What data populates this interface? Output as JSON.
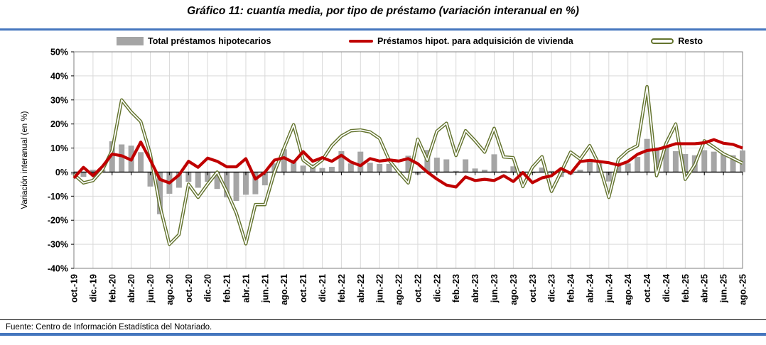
{
  "title": "Gráfico 11: cuantía media, por tipo de préstamo (variación interanual en %)",
  "footer": "Fuente: Centro de Información Estadística del Notariado.",
  "colors": {
    "accent_rule": "#4576BE",
    "bars": "#A5A5A5",
    "line_vivienda": "#C00000",
    "line_resto": "#64742F",
    "grid": "#D9D9D9",
    "axis": "#000000"
  },
  "legend": {
    "total_label": "Total préstamos hipotecarios",
    "vivienda_label": "Préstamos hipot. para adquisición de vivienda",
    "resto_label": "Resto"
  },
  "chart_data": {
    "type": "bar+line combo",
    "title": "Gráfico 11: cuantía media, por tipo de préstamo (variación interanual en %)",
    "ylabel": "Variación interanual (en %)",
    "ylim": [
      -40,
      50
    ],
    "grid": true,
    "legend_position": "top",
    "y_ticks": [
      50,
      40,
      30,
      20,
      10,
      0,
      -10,
      -20,
      -30,
      -40
    ],
    "y_tick_labels": [
      "50%",
      "40%",
      "30%",
      "20%",
      "10%",
      "0%",
      "-10%",
      "-20%",
      "-30%",
      "-40%"
    ],
    "x_tick_labels": [
      "oct.-19",
      "dic.-19",
      "feb.-20",
      "abr.-20",
      "jun.-20",
      "ago.-20",
      "oct.-20",
      "dic.-20",
      "feb.-21",
      "abr.-21",
      "jun.-21",
      "ago.-21",
      "oct.-21",
      "dic.-21",
      "feb.-22",
      "abr.-22",
      "jun.-22",
      "ago.-22",
      "oct.-22",
      "dic.-22",
      "feb.-23",
      "abr.-23",
      "jun.-23",
      "ago.-23",
      "oct.-23",
      "dic.-23",
      "feb.-24",
      "abr.-24",
      "jun.-24",
      "ago.-24",
      "oct.-24",
      "dic.-24",
      "feb.-25",
      "abr.-25",
      "jun.-25",
      "ago.-25"
    ],
    "categories": [
      "oct-19",
      "nov-19",
      "dic-19",
      "ene-20",
      "feb-20",
      "mar-20",
      "abr-20",
      "may-20",
      "jun-20",
      "jul-20",
      "ago-20",
      "sep-20",
      "oct-20",
      "nov-20",
      "dic-20",
      "ene-21",
      "feb-21",
      "mar-21",
      "abr-21",
      "may-21",
      "jun-21",
      "jul-21",
      "ago-21",
      "sep-21",
      "oct-21",
      "nov-21",
      "dic-21",
      "ene-22",
      "feb-22",
      "mar-22",
      "abr-22",
      "may-22",
      "jun-22",
      "jul-22",
      "ago-22",
      "sep-22",
      "oct-22",
      "nov-22",
      "dic-22",
      "ene-23",
      "feb-23",
      "mar-23",
      "abr-23",
      "may-23",
      "jun-23",
      "jul-23",
      "ago-23",
      "sep-23",
      "oct-23",
      "nov-23",
      "dic-23",
      "ene-24",
      "feb-24",
      "mar-24",
      "abr-24",
      "may-24",
      "jun-24",
      "jul-24",
      "ago-24",
      "sep-24",
      "oct-24",
      "nov-24",
      "dic-24",
      "ene-25",
      "feb-25",
      "mar-25",
      "abr-25",
      "may-25",
      "jun-25",
      "jul-25",
      "ago-25"
    ],
    "series": [
      {
        "name": "Total préstamos hipotecarios",
        "type": "bar",
        "values": [
          -1,
          -2,
          1,
          1,
          12.8,
          11.5,
          11,
          8.3,
          -6,
          -17.5,
          -9,
          -6.5,
          -4,
          -6.5,
          -4,
          -7,
          -10.5,
          -12,
          -9.4,
          -9.2,
          -5.5,
          3.6,
          9.5,
          5.1,
          2.7,
          3.2,
          1.7,
          2.2,
          8.7,
          3.6,
          8.5,
          3.9,
          3.4,
          3.4,
          0.5,
          6.8,
          -1,
          9.2,
          6,
          5.3,
          0.5,
          5.3,
          1.5,
          1,
          7.4,
          0.5,
          2.4,
          -1,
          -0.5,
          1.9,
          0.5,
          -2,
          -1,
          1,
          5.3,
          4.7,
          -3.9,
          3.4,
          3.6,
          6.3,
          13.8,
          10.3,
          11.3,
          8.7,
          7.5,
          7,
          9.1,
          8.5,
          7.5,
          7,
          9
        ]
      },
      {
        "name": "Préstamos hipot. para adquisición de vivienda",
        "type": "line",
        "values": [
          -2.5,
          2,
          -1.5,
          2.4,
          7.5,
          6.8,
          5,
          12.5,
          5,
          -3,
          -4.5,
          -1.2,
          4.5,
          2,
          5.8,
          4.5,
          2.2,
          2.2,
          5.6,
          -2.9,
          0,
          5,
          6,
          4,
          8.5,
          4.5,
          6,
          4.5,
          7,
          4.2,
          2.7,
          5.6,
          4.6,
          5.1,
          4.6,
          5.6,
          3.5,
          0,
          -2.9,
          -5.4,
          -6.2,
          -2,
          -3.5,
          -3,
          -3.5,
          -1.5,
          -3.9,
          -0.2,
          -4.4,
          -2.4,
          -1.5,
          1.5,
          -0.5,
          4.4,
          4.9,
          4.4,
          3.9,
          2.9,
          4.4,
          7.4,
          9,
          9.4,
          10.5,
          11.8,
          11.8,
          11.8,
          12.2,
          13.5,
          12,
          11.5,
          10
        ]
      },
      {
        "name": "Resto",
        "type": "line-outline",
        "values": [
          -1,
          -4.5,
          -3.5,
          1,
          9,
          30,
          25,
          21,
          7.5,
          -14,
          -30,
          -26,
          -5,
          -10.5,
          -5,
          0,
          -8,
          -17,
          -29.8,
          -13.5,
          -13.5,
          0,
          10,
          19.7,
          5,
          2,
          5,
          11,
          15,
          17.2,
          17.5,
          16.7,
          14,
          5,
          0,
          -4.5,
          13.7,
          4.9,
          17,
          20.3,
          6.9,
          17.2,
          13,
          8.3,
          18.2,
          6.3,
          6,
          -6,
          2,
          6.4,
          -8,
          0,
          8.3,
          5.4,
          11,
          3,
          -10.5,
          5.3,
          8.9,
          11,
          35.5,
          -1.5,
          12,
          20,
          -3,
          3,
          13,
          10.4,
          7.6,
          5.7,
          3.7
        ]
      }
    ]
  }
}
